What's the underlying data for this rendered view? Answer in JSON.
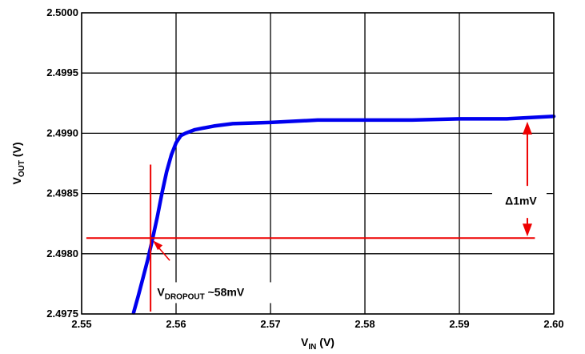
{
  "chart_data": {
    "type": "line",
    "xlabel": {
      "main": "V",
      "sub": "IN",
      "unit": " (V)"
    },
    "ylabel": {
      "main": "V",
      "sub": "OUT",
      "unit": " (V)"
    },
    "xlim": [
      2.55,
      2.6
    ],
    "ylim": [
      2.4975,
      2.5
    ],
    "x_ticks": [
      "2.55",
      "2.56",
      "2.57",
      "2.58",
      "2.59",
      "2.60"
    ],
    "y_ticks": [
      "2.4975",
      "2.4980",
      "2.4985",
      "2.4990",
      "2.4995",
      "2.5000"
    ],
    "grid": true,
    "series": [
      {
        "color": "#0000ee",
        "x": [
          2.5555,
          2.556,
          2.5565,
          2.557,
          2.5575,
          2.558,
          2.5585,
          2.559,
          2.5595,
          2.56,
          2.5605,
          2.561,
          2.562,
          2.564,
          2.566,
          2.57,
          2.575,
          2.58,
          2.585,
          2.59,
          2.595,
          2.6
        ],
        "y": [
          2.49751,
          2.49765,
          2.4978,
          2.49795,
          2.49812,
          2.4983,
          2.4985,
          2.49868,
          2.49882,
          2.49892,
          2.49898,
          2.499,
          2.49903,
          2.49906,
          2.49908,
          2.49909,
          2.49911,
          2.49911,
          2.49911,
          2.49912,
          2.49912,
          2.49914
        ]
      }
    ],
    "annotations": {
      "dropout_x": 2.5573,
      "dropout_vline_y": [
        2.49752,
        2.49874
      ],
      "reference_y": 2.49813,
      "reference_x": [
        2.5505,
        2.598
      ],
      "delta_x": 2.5972,
      "delta_y": [
        2.49813,
        2.49911
      ],
      "delta_label": "Δ1mV",
      "dropout_label": {
        "main": "V",
        "sub": "DROPOUT",
        "rest": " ~58mV"
      },
      "red": "#ee0000"
    }
  }
}
